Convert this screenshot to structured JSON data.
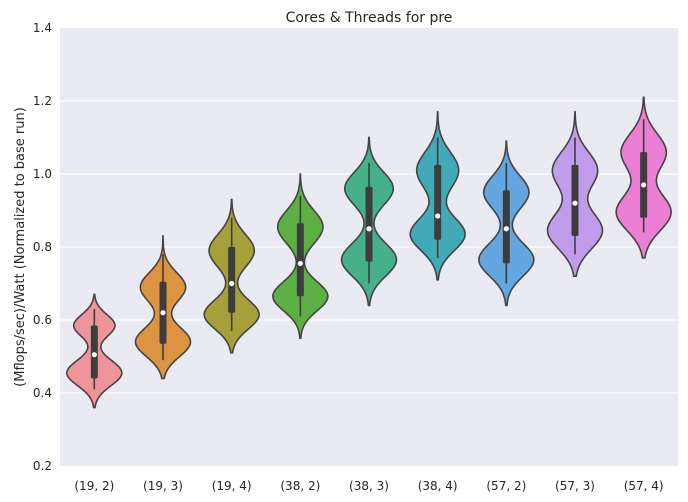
{
  "chart_data": {
    "type": "violin",
    "title": "Cores & Threads for pre",
    "xlabel": "",
    "ylabel": "(Mflops/sec)/Watt (Normalized to base run)",
    "ylim": [
      0.2,
      1.4
    ],
    "yticks": [
      "0.2",
      "0.4",
      "0.6",
      "0.8",
      "1.0",
      "1.2",
      "1.4"
    ],
    "grid": true,
    "categories": [
      "(19, 2)",
      "(19, 3)",
      "(19, 4)",
      "(38, 2)",
      "(38, 3)",
      "(38, 4)",
      "(57, 2)",
      "(57, 3)",
      "(57, 4)"
    ],
    "colors": [
      "#f0949b",
      "#dc9440",
      "#a5a03a",
      "#5cb043",
      "#45b08a",
      "#42a9b7",
      "#63a6e0",
      "#c19cec",
      "#eb7fd4"
    ],
    "series": [
      {
        "min": 0.36,
        "max": 0.67,
        "q1": 0.44,
        "median": 0.505,
        "q3": 0.585,
        "whisker_low": 0.41,
        "whisker_high": 0.63,
        "modes": [
          {
            "y": 0.455,
            "w": 1.0,
            "s": 0.035
          },
          {
            "y": 0.585,
            "w": 0.75,
            "s": 0.03
          }
        ]
      },
      {
        "min": 0.44,
        "max": 0.83,
        "q1": 0.535,
        "median": 0.62,
        "q3": 0.705,
        "whisker_low": 0.49,
        "whisker_high": 0.78,
        "modes": [
          {
            "y": 0.54,
            "w": 0.85,
            "s": 0.04
          },
          {
            "y": 0.69,
            "w": 0.7,
            "s": 0.04
          }
        ]
      },
      {
        "min": 0.51,
        "max": 0.93,
        "q1": 0.62,
        "median": 0.7,
        "q3": 0.8,
        "whisker_low": 0.57,
        "whisker_high": 0.88,
        "modes": [
          {
            "y": 0.615,
            "w": 0.85,
            "s": 0.04
          },
          {
            "y": 0.79,
            "w": 0.7,
            "s": 0.045
          }
        ]
      },
      {
        "min": 0.55,
        "max": 1.0,
        "q1": 0.665,
        "median": 0.755,
        "q3": 0.865,
        "whisker_low": 0.61,
        "whisker_high": 0.94,
        "modes": [
          {
            "y": 0.665,
            "w": 0.85,
            "s": 0.04
          },
          {
            "y": 0.855,
            "w": 0.7,
            "s": 0.045
          }
        ]
      },
      {
        "min": 0.64,
        "max": 1.1,
        "q1": 0.76,
        "median": 0.85,
        "q3": 0.965,
        "whisker_low": 0.7,
        "whisker_high": 1.03,
        "modes": [
          {
            "y": 0.765,
            "w": 0.85,
            "s": 0.045
          },
          {
            "y": 0.96,
            "w": 0.75,
            "s": 0.045
          }
        ]
      },
      {
        "min": 0.71,
        "max": 1.17,
        "q1": 0.82,
        "median": 0.885,
        "q3": 1.025,
        "whisker_low": 0.77,
        "whisker_high": 1.1,
        "modes": [
          {
            "y": 0.835,
            "w": 0.85,
            "s": 0.045
          },
          {
            "y": 1.01,
            "w": 0.65,
            "s": 0.05
          }
        ]
      },
      {
        "min": 0.64,
        "max": 1.09,
        "q1": 0.755,
        "median": 0.85,
        "q3": 0.955,
        "whisker_low": 0.7,
        "whisker_high": 1.03,
        "modes": [
          {
            "y": 0.765,
            "w": 0.85,
            "s": 0.045
          },
          {
            "y": 0.95,
            "w": 0.7,
            "s": 0.045
          }
        ]
      },
      {
        "min": 0.72,
        "max": 1.17,
        "q1": 0.83,
        "median": 0.92,
        "q3": 1.025,
        "whisker_low": 0.78,
        "whisker_high": 1.1,
        "modes": [
          {
            "y": 0.845,
            "w": 0.85,
            "s": 0.05
          },
          {
            "y": 1.01,
            "w": 0.7,
            "s": 0.05
          }
        ]
      },
      {
        "min": 0.77,
        "max": 1.21,
        "q1": 0.88,
        "median": 0.97,
        "q3": 1.06,
        "whisker_low": 0.84,
        "whisker_high": 1.15,
        "modes": [
          {
            "y": 0.895,
            "w": 0.85,
            "s": 0.05
          },
          {
            "y": 1.06,
            "w": 0.7,
            "s": 0.05
          }
        ]
      }
    ]
  }
}
